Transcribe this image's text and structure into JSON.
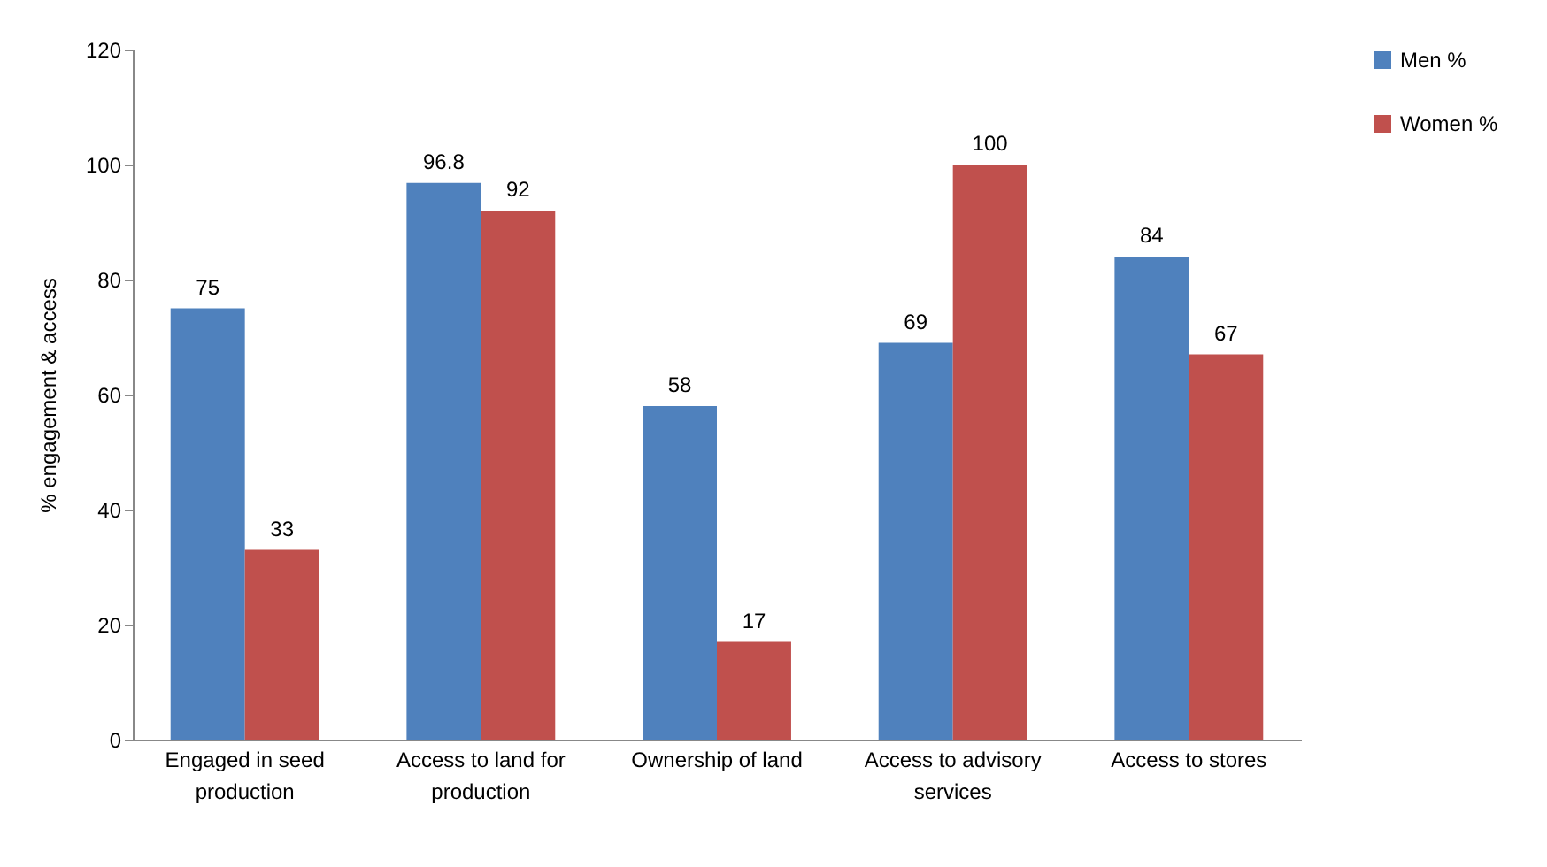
{
  "chart_data": {
    "type": "bar",
    "ylabel": "% engagement & access",
    "categories": [
      "Engaged in seed production",
      "Access to land for production",
      "Ownership of land",
      "Access to advisory services",
      "Access to stores"
    ],
    "series": [
      {
        "name": "Men %",
        "color": "#4f81bd",
        "values": [
          75,
          96.8,
          58,
          69,
          84
        ]
      },
      {
        "name": "Women %",
        "color": "#c0504d",
        "values": [
          33,
          92,
          17,
          100,
          67
        ]
      }
    ],
    "ylim": [
      0,
      120
    ],
    "yticks": [
      0,
      20,
      40,
      60,
      80,
      100,
      120
    ],
    "grid": false,
    "legend": "right",
    "data_labels": true
  }
}
